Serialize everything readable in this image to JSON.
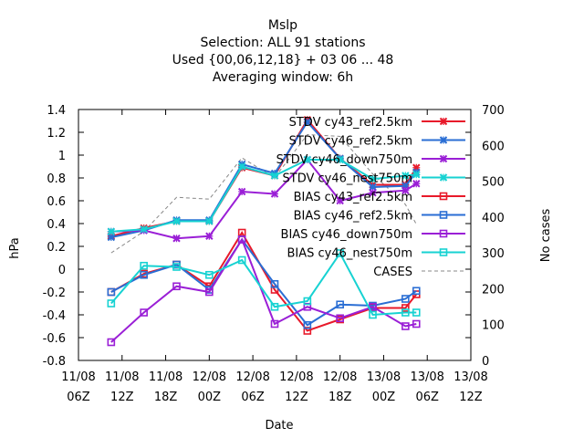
{
  "chart_data": {
    "type": "line",
    "title_lines": [
      "Mslp",
      "Selection: ALL     91 stations",
      "Used {00,06,12,18} + 03 06 ... 48",
      "Averaging window:  6h"
    ],
    "xlabel": "Date",
    "ylabel": "hPa",
    "y2label": "No cases",
    "ylim": [
      -0.8,
      1.4
    ],
    "y2lim": [
      0,
      700
    ],
    "grid": false,
    "legend_position": "top-right",
    "x_ticks": [
      {
        "line1": "11/08",
        "line2": "06Z"
      },
      {
        "line1": "11/08",
        "line2": "12Z"
      },
      {
        "line1": "11/08",
        "line2": "18Z"
      },
      {
        "line1": "12/08",
        "line2": "00Z"
      },
      {
        "line1": "12/08",
        "line2": "06Z"
      },
      {
        "line1": "12/08",
        "line2": "12Z"
      },
      {
        "line1": "12/08",
        "line2": "18Z"
      },
      {
        "line1": "13/08",
        "line2": "00Z"
      },
      {
        "line1": "13/08",
        "line2": "06Z"
      },
      {
        "line1": "13/08",
        "line2": "12Z"
      }
    ],
    "y_ticks": [
      "-0.8",
      "-0.6",
      "-0.4",
      "-0.2",
      "0",
      "0.2",
      "0.4",
      "0.6",
      "0.8",
      "1",
      "1.2",
      "1.4"
    ],
    "y2_ticks": [
      "0",
      "100",
      "200",
      "300",
      "400",
      "500",
      "600",
      "700"
    ],
    "x_hours": [
      9,
      18,
      27,
      36,
      45,
      54,
      63,
      72,
      81,
      90,
      93
    ],
    "series": [
      {
        "name": "STDV cy43_ref2.5km",
        "color": "#e8192a",
        "marker": "x",
        "dashed": false,
        "values": [
          0.29,
          0.36,
          0.42,
          0.42,
          0.89,
          0.82,
          1.31,
          0.97,
          0.74,
          0.74,
          0.89
        ]
      },
      {
        "name": "STDV cy46_ref2.5km",
        "color": "#2a6ed4",
        "marker": "x",
        "dashed": false,
        "values": [
          0.28,
          0.34,
          0.43,
          0.43,
          0.92,
          0.84,
          1.29,
          0.97,
          0.72,
          0.73,
          0.85
        ]
      },
      {
        "name": "STDV cy46_down750m",
        "color": "#9a1fd6",
        "marker": "x",
        "dashed": false,
        "values": [
          0.33,
          0.34,
          0.27,
          0.29,
          0.68,
          0.66,
          0.96,
          0.6,
          0.67,
          0.69,
          0.75
        ]
      },
      {
        "name": "STDV cy46_nest750m",
        "color": "#17d2d2",
        "marker": "x",
        "dashed": false,
        "values": [
          0.33,
          0.35,
          0.42,
          0.42,
          0.9,
          0.82,
          0.96,
          0.96,
          0.79,
          0.82,
          0.83
        ]
      },
      {
        "name": "BIAS cy43_ref2.5km",
        "color": "#e8192a",
        "marker": "square",
        "dashed": false,
        "values": [
          -0.2,
          -0.04,
          0.04,
          -0.15,
          0.32,
          -0.18,
          -0.54,
          -0.44,
          -0.34,
          -0.34,
          -0.22
        ]
      },
      {
        "name": "BIAS cy46_ref2.5km",
        "color": "#2a6ed4",
        "marker": "square",
        "dashed": false,
        "values": [
          -0.2,
          -0.05,
          0.04,
          -0.18,
          0.26,
          -0.13,
          -0.49,
          -0.31,
          -0.32,
          -0.26,
          -0.19
        ]
      },
      {
        "name": "BIAS cy46_down750m",
        "color": "#9a1fd6",
        "marker": "square",
        "dashed": false,
        "values": [
          -0.64,
          -0.38,
          -0.15,
          -0.2,
          0.26,
          -0.48,
          -0.33,
          -0.43,
          -0.33,
          -0.5,
          -0.48
        ]
      },
      {
        "name": "BIAS cy46_nest750m",
        "color": "#17d2d2",
        "marker": "square",
        "dashed": false,
        "values": [
          -0.3,
          0.03,
          0.02,
          -0.05,
          0.08,
          -0.33,
          -0.28,
          0.14,
          -0.4,
          -0.38,
          -0.38
        ]
      },
      {
        "name": "CASES",
        "color": "#888888",
        "marker": "none",
        "dashed": true,
        "axis": "y2",
        "values": [
          300,
          360,
          455,
          450,
          565,
          510,
          630,
          625,
          520,
          435,
          380
        ]
      }
    ]
  }
}
